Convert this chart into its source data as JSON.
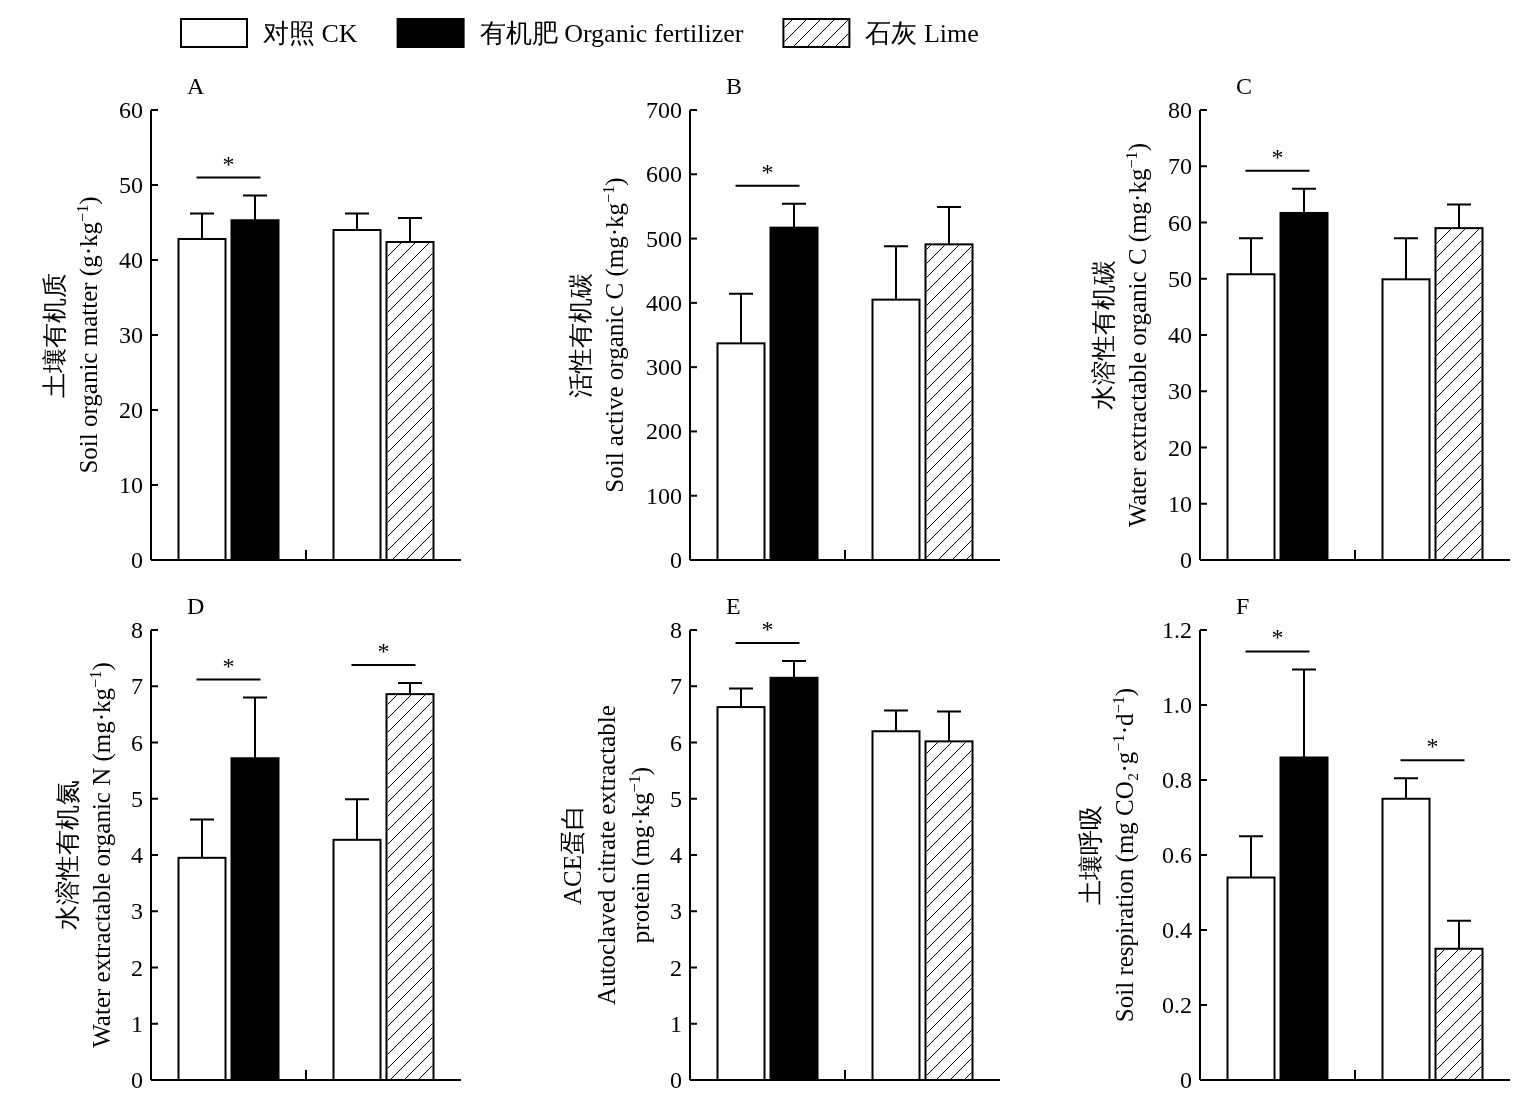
{
  "chart_data": [
    {
      "type": "bar",
      "title": "A",
      "ylabel": "土壤有机质\nSoil organic matter (g·kg$^{−1}$)",
      "categories": [
        null,
        null
      ],
      "ylim": [
        0,
        60
      ],
      "yticks": [
        0,
        10,
        20,
        30,
        40,
        50,
        60
      ],
      "legend": "top",
      "annotations": [
        "*"
      ],
      "series": [
        {
          "name": "对照 CK",
          "color": "#ffffff",
          "values": [
            42.8,
            44.0
          ],
          "errors": [
            3.4,
            2.2
          ]
        },
        {
          "name": "有机肥 Organic fertilizer",
          "color": "#000000",
          "values": [
            45.3,
            null
          ],
          "errors": [
            3.3,
            null
          ]
        },
        {
          "name": "石灰 Lime",
          "color": "#ffffff",
          "values": [
            null,
            42.4
          ],
          "errors": [
            null,
            3.2
          ]
        }
      ]
    },
    {
      "type": "bar",
      "title": "B",
      "ylabel": "活性有机碳\nSoil active organic C (mg·kg$^{−1}$)",
      "categories": [
        null,
        null
      ],
      "ylim": [
        0,
        700
      ],
      "yticks": [
        0,
        100,
        200,
        300,
        400,
        500,
        600,
        700
      ],
      "annotations": [
        "*"
      ],
      "series": [
        {
          "color": "#ffffff",
          "values": [
            337,
            405
          ],
          "errors": [
            77,
            83
          ]
        },
        {
          "color": "#000000",
          "values": [
            517,
            null
          ],
          "errors": [
            37,
            null
          ]
        },
        {
          "color": "#ffffff",
          "values": [
            null,
            491
          ],
          "errors": [
            null,
            58
          ]
        }
      ]
    },
    {
      "type": "bar",
      "title": "C",
      "ylabel": "水溶性有机碳\nWater extractable organic C (mg·kg$^{−1}$)",
      "categories": [
        null,
        null
      ],
      "ylim": [
        0,
        80
      ],
      "yticks": [
        0,
        10,
        20,
        30,
        40,
        50,
        60,
        70,
        80
      ],
      "annotations": [
        "*"
      ],
      "series": [
        {
          "color": "#ffffff",
          "values": [
            50.8,
            49.9
          ],
          "errors": [
            6.4,
            7.3
          ]
        },
        {
          "color": "#000000",
          "values": [
            61.7,
            null
          ],
          "errors": [
            4.3,
            null
          ]
        },
        {
          "color": "#ffffff",
          "values": [
            null,
            59.0
          ],
          "errors": [
            null,
            4.2
          ]
        }
      ]
    },
    {
      "type": "bar",
      "title": "D",
      "ylabel": "水溶性有机氮\nWater extractable organic N (mg·kg$^{−1}$)",
      "categories": [
        null,
        null
      ],
      "ylim": [
        0,
        8
      ],
      "yticks": [
        0,
        1,
        2,
        3,
        4,
        5,
        6,
        7,
        8
      ],
      "annotations": [
        "*",
        "*"
      ],
      "series": [
        {
          "color": "#ffffff",
          "values": [
            3.95,
            4.27
          ],
          "errors": [
            0.68,
            0.72
          ]
        },
        {
          "color": "#000000",
          "values": [
            5.72,
            null
          ],
          "errors": [
            1.08,
            null
          ]
        },
        {
          "color": "#ffffff",
          "values": [
            null,
            6.86
          ],
          "errors": [
            null,
            0.2
          ]
        }
      ]
    },
    {
      "type": "bar",
      "title": "E",
      "ylabel": "ACE蛋白\nAutoclaved citrate extractable\nprotein (mg·kg$^{−1}$)",
      "categories": [
        null,
        null
      ],
      "ylim": [
        0,
        8
      ],
      "yticks": [
        0,
        1,
        2,
        3,
        4,
        5,
        6,
        7,
        8
      ],
      "annotations": [
        "*"
      ],
      "series": [
        {
          "color": "#ffffff",
          "values": [
            6.63,
            6.2
          ],
          "errors": [
            0.33,
            0.37
          ]
        },
        {
          "color": "#000000",
          "values": [
            7.15,
            null
          ],
          "errors": [
            0.3,
            null
          ]
        },
        {
          "color": "#ffffff",
          "values": [
            null,
            6.02
          ],
          "errors": [
            null,
            0.53
          ]
        }
      ]
    },
    {
      "type": "bar",
      "title": "F",
      "ylabel": "土壤呼吸\nSoil respiration (mg CO₂·g$^{−1}$·d$^{−1}$)",
      "categories": [
        null,
        null
      ],
      "ylim": [
        0,
        1.2
      ],
      "yticks": [
        0,
        0.2,
        0.4,
        0.6,
        0.8,
        {
          "value": 1,
          "label": "1.0"
        },
        1.2
      ],
      "annotations": [
        "*",
        "*"
      ],
      "series": [
        {
          "color": "#ffffff",
          "values": [
            0.54,
            0.75
          ],
          "errors": [
            0.11,
            0.055
          ]
        },
        {
          "color": "#000000",
          "values": [
            0.86,
            null
          ],
          "errors": [
            0.235,
            null
          ]
        },
        {
          "color": "#ffffff",
          "values": [
            null,
            0.35
          ],
          "errors": [
            null,
            0.075
          ]
        }
      ]
    }
  ]
}
